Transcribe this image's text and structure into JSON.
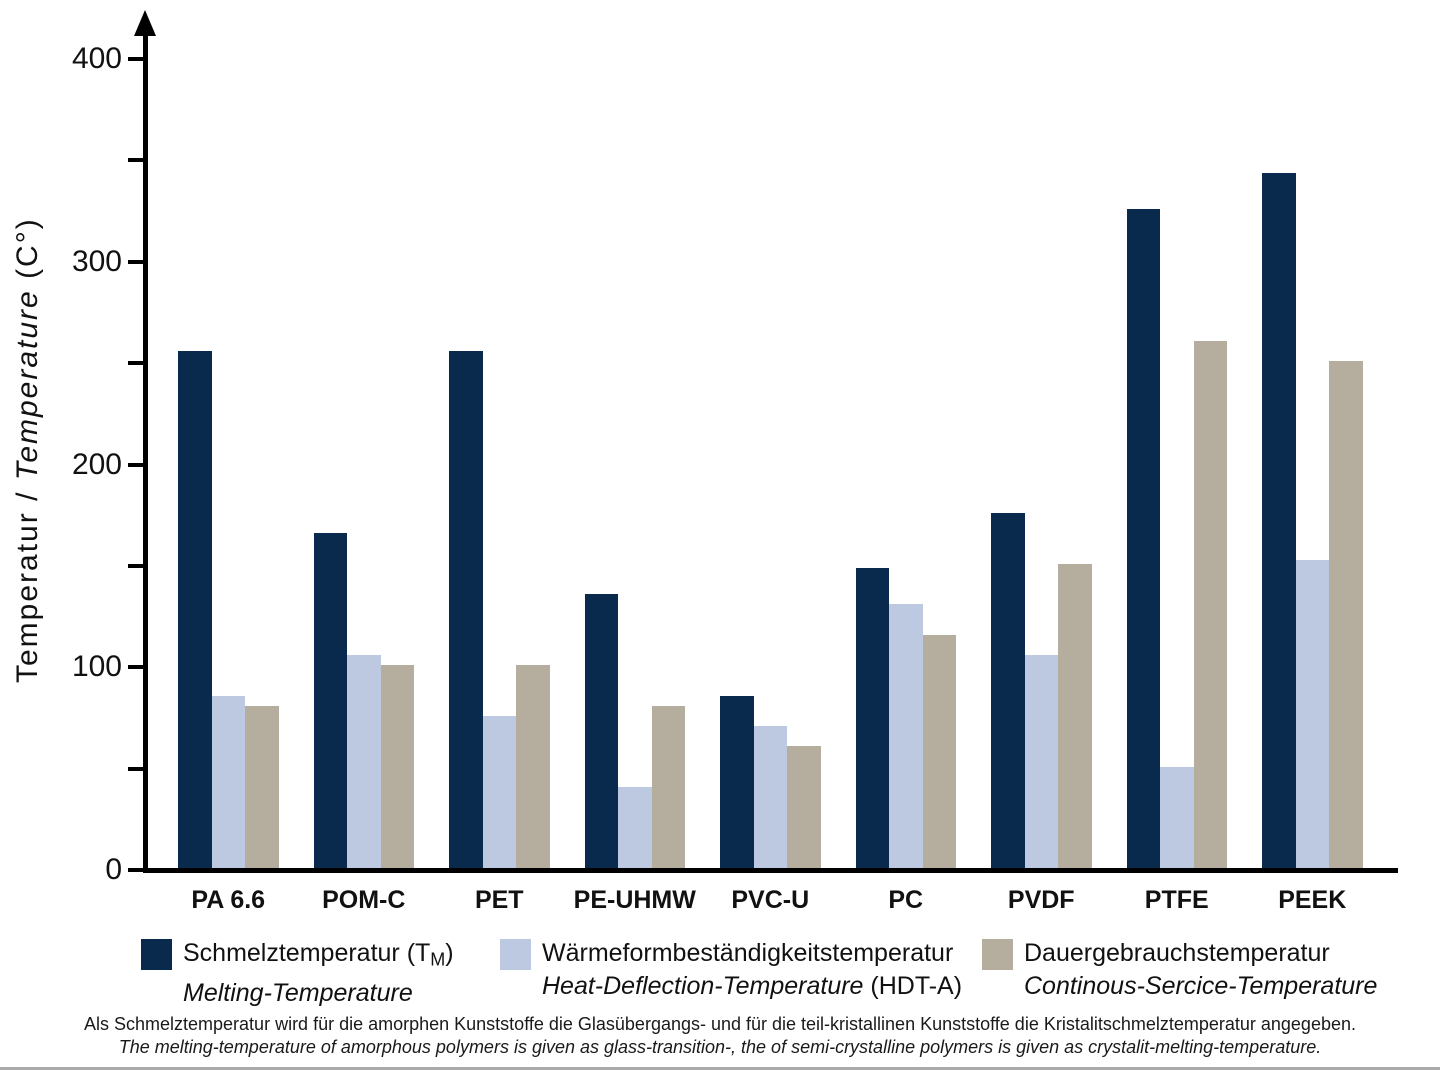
{
  "chart_data": {
    "type": "bar",
    "title": "",
    "categories": [
      "PA 6.6",
      "POM-C",
      "PET",
      "PE-UHMW",
      "PVC-U",
      "PC",
      "PVDF",
      "PTFE",
      "PEEK"
    ],
    "series": [
      {
        "name_de": "Schmelztemperatur (TM)",
        "name_en": "Melting-Temperature",
        "color": "#0A2A4D",
        "values": [
          255,
          165,
          255,
          135,
          85,
          148,
          175,
          325,
          343
        ]
      },
      {
        "name_de": "Wärmeformbeständigkeitstemperatur",
        "name_en": "Heat-Deflection-Temperature (HDT-A)",
        "color": "#BCC9E0",
        "values": [
          85,
          105,
          75,
          40,
          70,
          130,
          105,
          50,
          152
        ]
      },
      {
        "name_de": "Dauergebrauchstemperatur",
        "name_en": "Continous-Sercice-Temperature",
        "color": "#B5AE9F",
        "values": [
          80,
          100,
          100,
          80,
          60,
          115,
          150,
          260,
          250
        ]
      }
    ],
    "xlabel": "",
    "ylabel": "Temperatur / Temperature (C°)",
    "ylim": [
      0,
      400
    ],
    "ytick_major_step": 100,
    "ytick_minor_step": 50,
    "grid": false,
    "legend_position": "bottom"
  },
  "ylabel_parts": {
    "de": "Temperatur",
    "sep": " / ",
    "en": "Temperature",
    "unit": " (C°)"
  },
  "legend": {
    "items": [
      {
        "de_prefix": "Schmelztemperatur (T",
        "de_sub": "M",
        "de_suffix": ")",
        "en": "Melting-Temperature"
      },
      {
        "de": "Wärmeformbeständigkeitstemperatur",
        "en_italic": "Heat-Deflection-Temperature",
        "en_plain": " (HDT-A)"
      },
      {
        "de": "Dauergebrauchstemperatur",
        "en": "Continous-Sercice-Temperature"
      }
    ]
  },
  "footer": {
    "line1_de": "Als Schmelztemperatur wird für die amorphen Kunststoffe die Glasübergangs- und für die teil-kristallinen Kunststoffe die Kristalitschmelztemperatur angegeben.",
    "line2_en": "The melting-temperature of amorphous polymers is given as glass-transition-, the of semi-crystalline polymers is given as crystalit-melting-temperature."
  },
  "colors": {
    "melting": "#0A2A4D",
    "hdt": "#BCC9E0",
    "service": "#B5AE9F",
    "axis": "#000000",
    "text": "#111111",
    "bottom_rule": "#AAAAAA",
    "background": "#FFFFFF"
  }
}
